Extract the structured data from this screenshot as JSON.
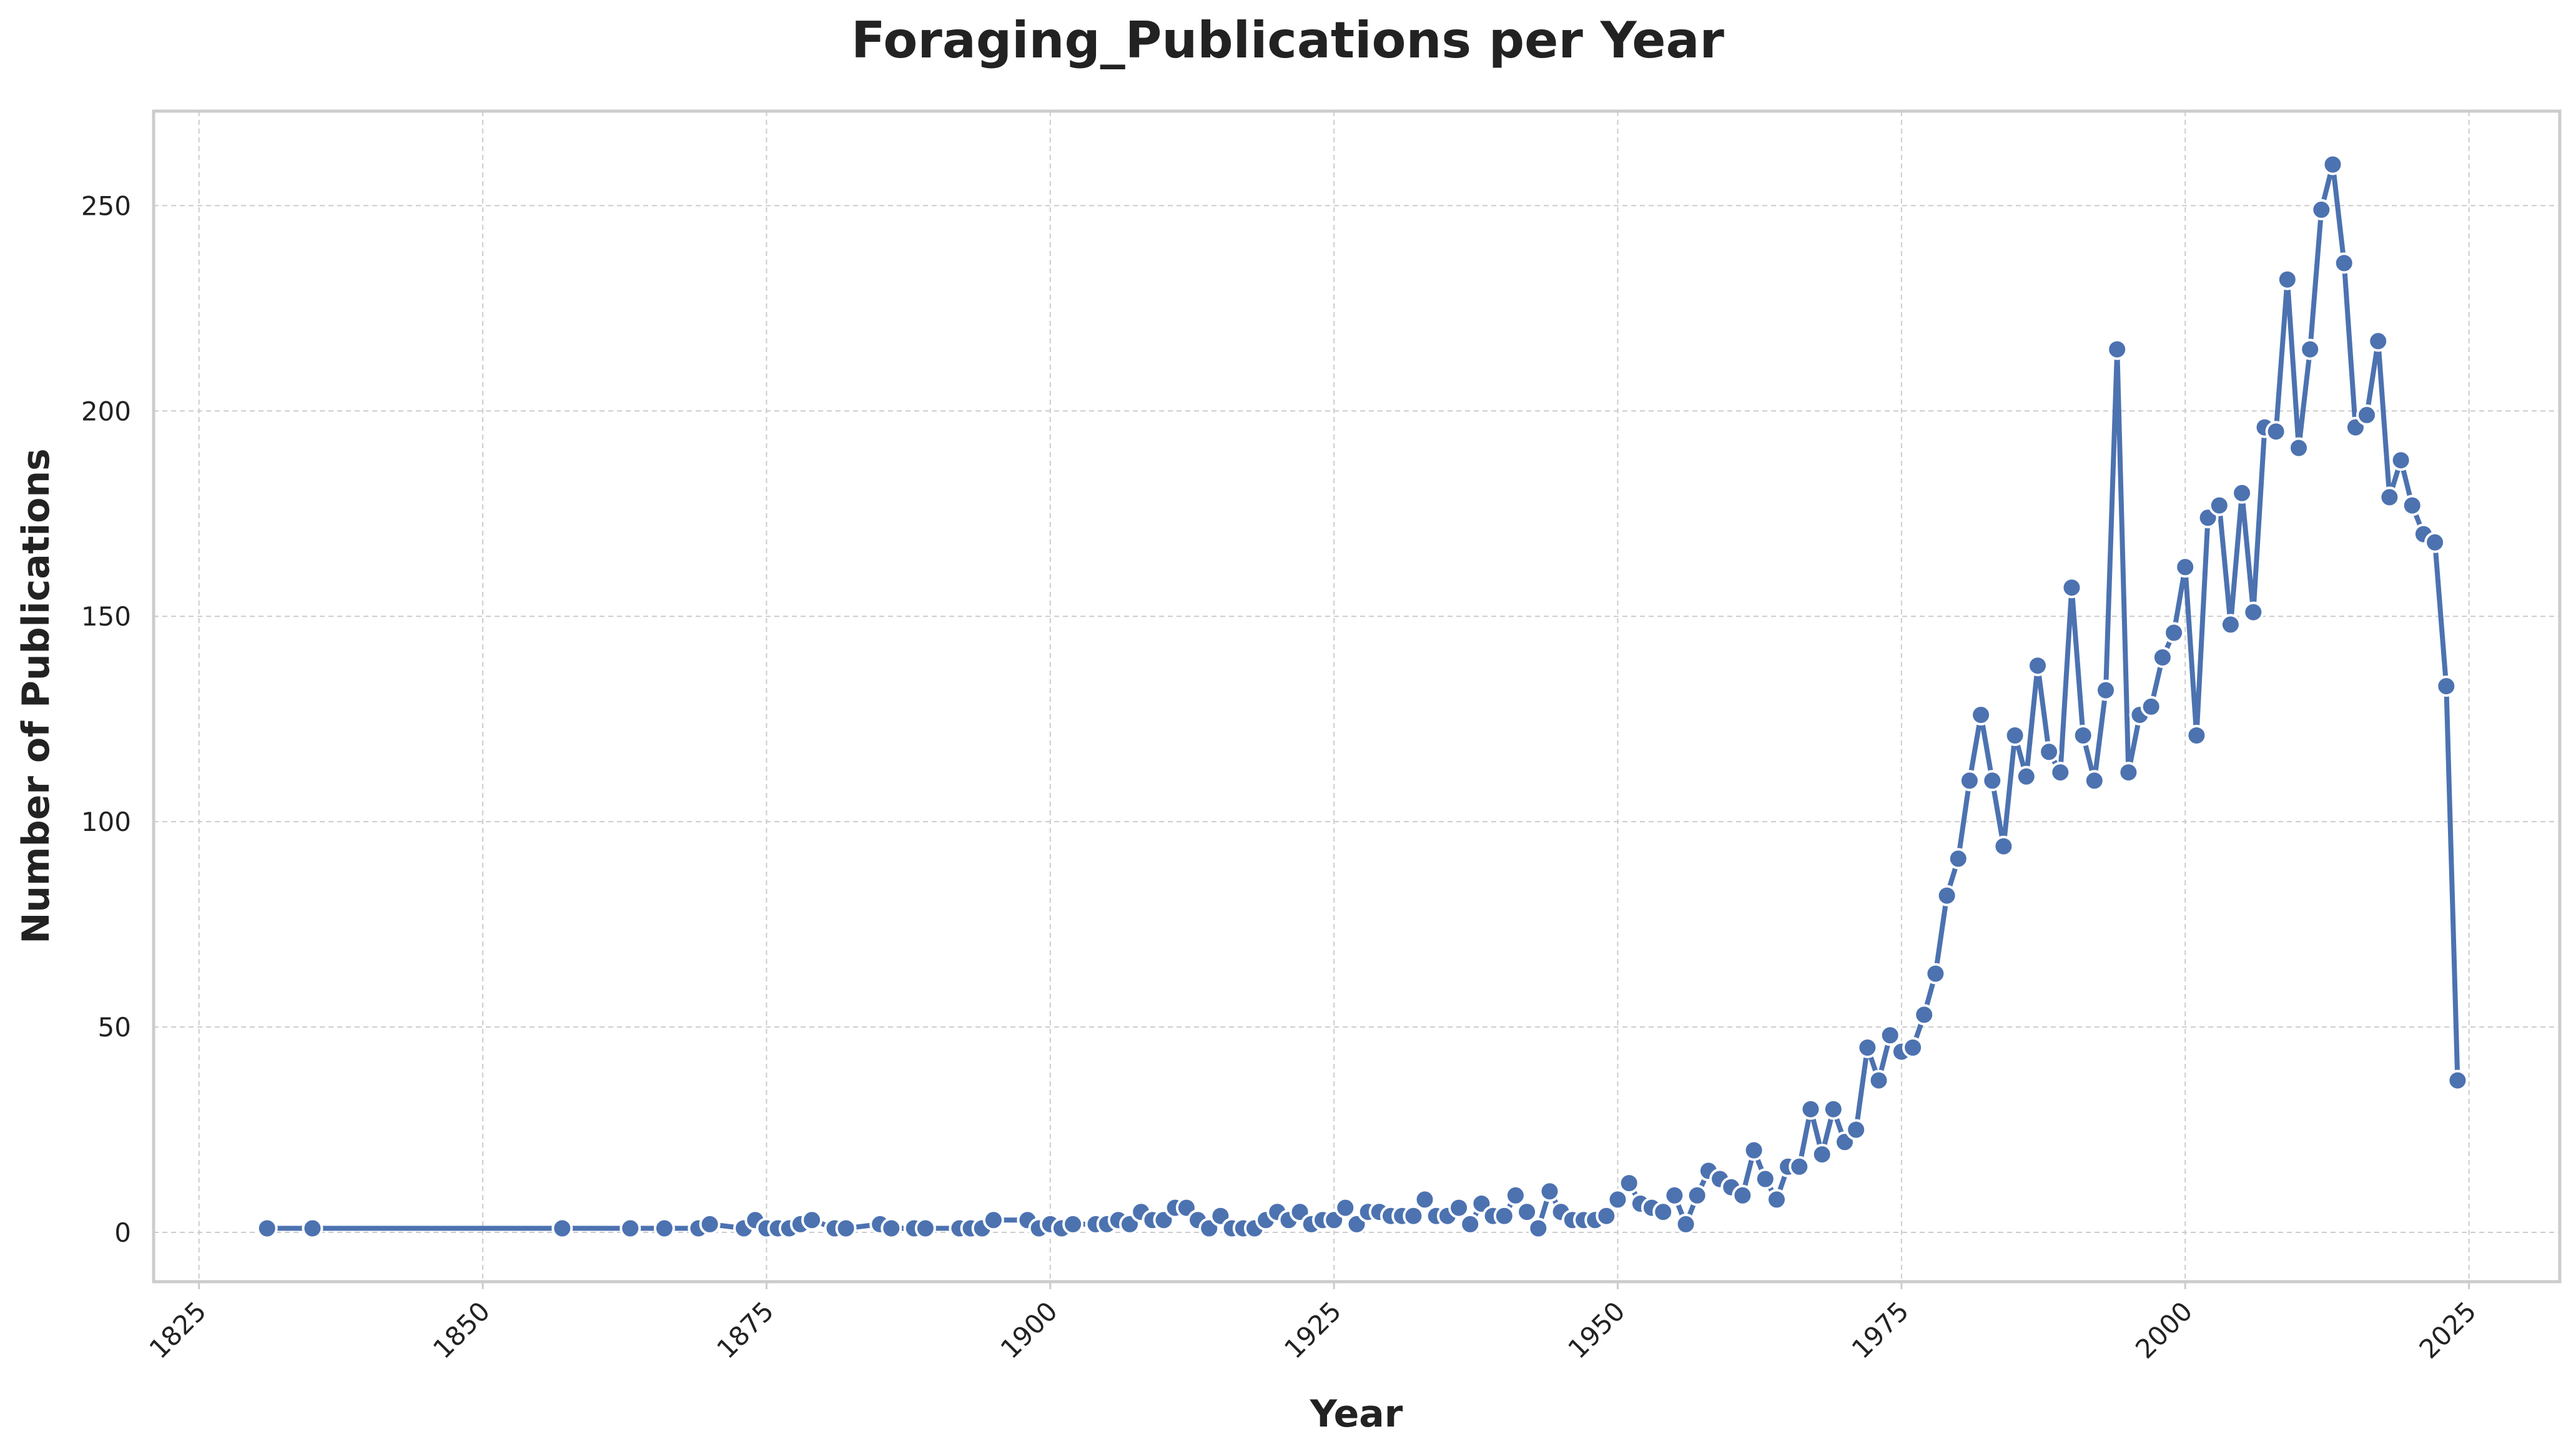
{
  "chart_data": {
    "type": "line",
    "title": "Foraging_Publications per Year",
    "xlabel": "Year",
    "ylabel": "Number of Publications",
    "xlim": [
      1821,
      2033
    ],
    "ylim": [
      -12,
      273
    ],
    "xticks": [
      1825,
      1850,
      1875,
      1900,
      1925,
      1950,
      1975,
      2000,
      2025
    ],
    "yticks": [
      0,
      50,
      100,
      150,
      200,
      250
    ],
    "grid": true,
    "colors": {
      "series": "#4c72b0",
      "grid": "#cccccc",
      "text": "#222222"
    },
    "series": [
      {
        "x": [
          1831,
          1835,
          1857,
          1863,
          1866,
          1869,
          1870,
          1873,
          1874,
          1875,
          1876,
          1877,
          1878,
          1879,
          1881,
          1882,
          1885,
          1886,
          1888,
          1889,
          1892,
          1893,
          1894,
          1895,
          1898,
          1899,
          1900,
          1901,
          1902,
          1904,
          1905,
          1906,
          1907,
          1908,
          1909,
          1910,
          1911,
          1912,
          1913,
          1914,
          1915,
          1916,
          1917,
          1918,
          1919,
          1920,
          1921,
          1922,
          1923,
          1924,
          1925,
          1926,
          1927,
          1928,
          1929,
          1930,
          1931,
          1932,
          1933,
          1934,
          1935,
          1936,
          1937,
          1938,
          1939,
          1940,
          1941,
          1942,
          1943,
          1944,
          1945,
          1946,
          1947,
          1948,
          1949,
          1950,
          1951,
          1952,
          1953,
          1954,
          1955,
          1956,
          1957,
          1958,
          1959,
          1960,
          1961,
          1962,
          1963,
          1964,
          1965,
          1966,
          1967,
          1968,
          1969,
          1970,
          1971,
          1972,
          1973,
          1974,
          1975,
          1976,
          1977,
          1978,
          1979,
          1980,
          1981,
          1982,
          1983,
          1984,
          1985,
          1986,
          1987,
          1988,
          1989,
          1990,
          1991,
          1992,
          1993,
          1994,
          1995,
          1996,
          1997,
          1998,
          1999,
          2000,
          2001,
          2002,
          2003,
          2004,
          2005,
          2006,
          2007,
          2008,
          2009,
          2010,
          2011,
          2012,
          2013,
          2014,
          2015,
          2016,
          2017,
          2018,
          2019,
          2020,
          2021,
          2022,
          2023,
          2024
        ],
        "values": [
          1,
          1,
          1,
          1,
          1,
          1,
          2,
          1,
          3,
          1,
          1,
          1,
          2,
          3,
          1,
          1,
          2,
          1,
          1,
          1,
          1,
          1,
          1,
          3,
          3,
          1,
          2,
          1,
          2,
          2,
          2,
          3,
          2,
          5,
          3,
          3,
          6,
          6,
          3,
          1,
          4,
          1,
          1,
          1,
          3,
          5,
          3,
          5,
          2,
          3,
          3,
          6,
          2,
          5,
          5,
          4,
          4,
          4,
          8,
          4,
          4,
          6,
          2,
          7,
          4,
          4,
          9,
          5,
          1,
          10,
          5,
          3,
          3,
          3,
          4,
          8,
          12,
          7,
          6,
          5,
          9,
          2,
          9,
          15,
          13,
          11,
          9,
          20,
          13,
          8,
          16,
          16,
          30,
          19,
          30,
          22,
          25,
          45,
          37,
          48,
          44,
          45,
          53,
          63,
          82,
          91,
          110,
          126,
          110,
          94,
          121,
          111,
          138,
          117,
          112,
          157,
          121,
          110,
          132,
          215,
          112,
          126,
          128,
          140,
          146,
          162,
          121,
          174,
          177,
          148,
          180,
          151,
          196,
          195,
          232,
          191,
          215,
          249,
          260,
          236,
          196,
          199,
          217,
          179,
          188,
          177,
          170,
          168,
          133,
          37
        ]
      }
    ]
  }
}
